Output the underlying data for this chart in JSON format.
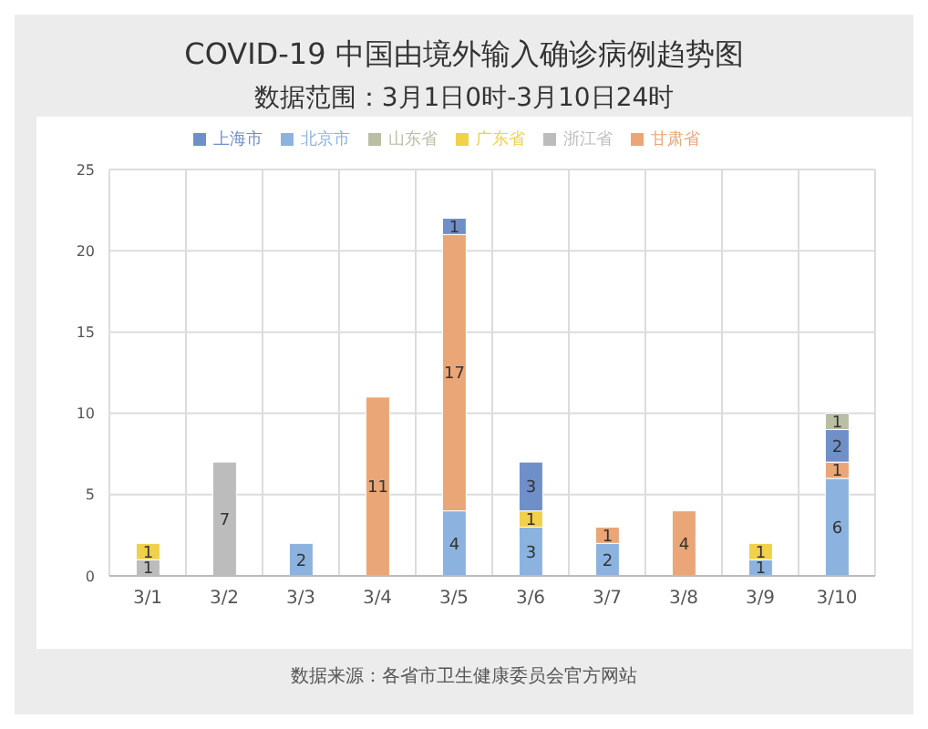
{
  "chart_data": {
    "type": "bar",
    "title": "COVID-19 中国由境外输入确诊病例趋势图",
    "subtitle": "数据范围：3月1日0时-3月10日24时",
    "categories": [
      "3/1",
      "3/2",
      "3/3",
      "3/4",
      "3/5",
      "3/6",
      "3/7",
      "3/8",
      "3/9",
      "3/10"
    ],
    "series": [
      {
        "name": "北京市",
        "color": "#8cb3df",
        "values": [
          null,
          null,
          2,
          null,
          4,
          3,
          2,
          null,
          1,
          6
        ]
      },
      {
        "name": "甘肃省",
        "color": "#eaa677",
        "values": [
          null,
          null,
          null,
          11,
          17,
          null,
          1,
          4,
          null,
          1
        ]
      },
      {
        "name": "浙江省",
        "color": "#bcbcbc",
        "values": [
          1,
          7,
          null,
          null,
          null,
          null,
          null,
          null,
          null,
          null
        ]
      },
      {
        "name": "广东省",
        "color": "#f1d04a",
        "values": [
          1,
          null,
          null,
          null,
          null,
          1,
          null,
          null,
          1,
          null
        ]
      },
      {
        "name": "上海市",
        "color": "#6f8fc8",
        "values": [
          null,
          null,
          null,
          null,
          1,
          3,
          null,
          null,
          null,
          2
        ]
      },
      {
        "name": "山东省",
        "color": "#b9bfa4",
        "values": [
          null,
          null,
          null,
          null,
          null,
          null,
          null,
          null,
          null,
          1
        ]
      }
    ],
    "stacked": true,
    "ylim": [
      0,
      25
    ],
    "yticks": [
      0,
      5,
      10,
      15,
      20,
      25
    ],
    "grid": true,
    "legend": "top",
    "data_labels": true,
    "annotations": [
      "数据来源：各省市卫生健康委员会官方网站"
    ]
  }
}
